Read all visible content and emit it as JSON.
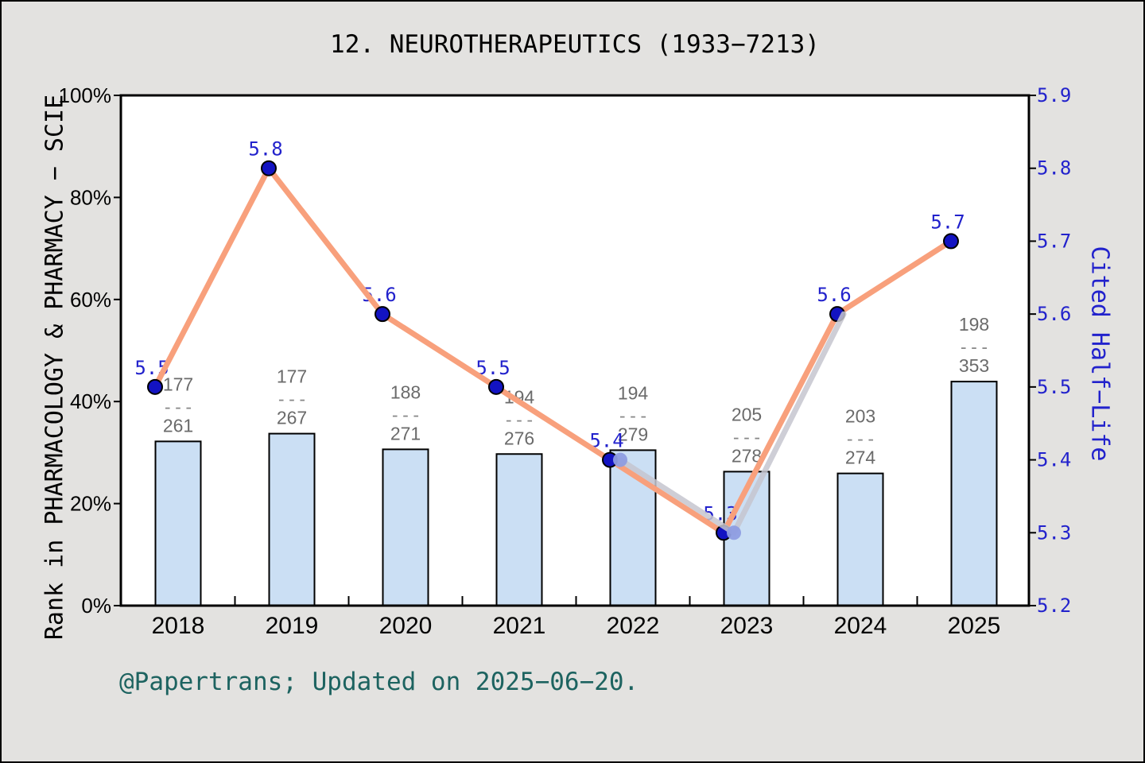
{
  "title": "12. NEUROTHERAPEUTICS (1933−7213)",
  "footer": {
    "text": "@Papertrans; Updated on 2025−06−20."
  },
  "chart_data": {
    "type": "composite",
    "title": "12. NEUROTHERAPEUTICS (1933−7213)",
    "categories": [
      "2018",
      "2019",
      "2020",
      "2021",
      "2022",
      "2023",
      "2024",
      "2025"
    ],
    "axes": {
      "x": {
        "tick_labels": [
          "2018",
          "2019",
          "2020",
          "2021",
          "2022",
          "2023",
          "2024",
          "2025"
        ]
      },
      "left": {
        "title": "Rank in PHARMACOLOGY & PHARMACY − SCIE",
        "tick_labels": [
          "0%",
          "20%",
          "40%",
          "60%",
          "80%",
          "100%"
        ],
        "tick_values": [
          0,
          20,
          40,
          60,
          80,
          100
        ],
        "range": [
          0,
          100
        ]
      },
      "right": {
        "title": "Cited Half−Life",
        "tick_labels": [
          "5.2",
          "5.3",
          "5.4",
          "5.5",
          "5.6",
          "5.7",
          "5.8",
          "5.9"
        ],
        "tick_values": [
          5.2,
          5.3,
          5.4,
          5.5,
          5.6,
          5.7,
          5.8,
          5.9
        ],
        "range": [
          5.2,
          5.9
        ]
      }
    },
    "series": [
      {
        "name": "rank-bars",
        "type": "bar",
        "axis": "left",
        "fractions": [
          {
            "numerator": 177,
            "denominator": 261
          },
          {
            "numerator": 177,
            "denominator": 267
          },
          {
            "numerator": 188,
            "denominator": 271
          },
          {
            "numerator": 194,
            "denominator": 276
          },
          {
            "numerator": 194,
            "denominator": 279
          },
          {
            "numerator": 205,
            "denominator": 278
          },
          {
            "numerator": 203,
            "denominator": 274
          },
          {
            "numerator": 198,
            "denominator": 353
          }
        ],
        "bar_percent": [
          32.18,
          33.71,
          30.63,
          29.71,
          30.47,
          26.26,
          25.91,
          43.91
        ]
      },
      {
        "name": "cited-half-life",
        "type": "line",
        "axis": "right",
        "values": [
          5.5,
          5.8,
          5.6,
          5.5,
          5.4,
          5.3,
          5.6,
          5.7
        ],
        "point_labels": [
          "5.5",
          "5.8",
          "5.6",
          "5.5",
          "5.4",
          "5.3",
          "5.6",
          "5.7"
        ]
      },
      {
        "name": "shadow-line",
        "type": "line",
        "axis": "right",
        "categories": [
          "2022",
          "2023",
          "2024"
        ],
        "values": [
          5.4,
          5.3,
          5.6
        ],
        "marker_categories": [
          "2022",
          "2023"
        ]
      }
    ],
    "grid": "off",
    "legend": "none"
  },
  "colors": {
    "background": "#e3e2e0",
    "plot_background": "#ffffff",
    "frame": "#000000",
    "bar_fill": "#cbdff4",
    "bar_stroke": "#000000",
    "line": "#f8a07c",
    "marker": "#1313c2",
    "shadow_line": "#c6c6cf",
    "shadow_marker": "#8e9de2",
    "value_label": "#2222cc",
    "right_axis": "#2222cc",
    "fraction_text": "#6b6b6b",
    "fraction_dash": "#888888",
    "footer_text": "#1d6360"
  }
}
